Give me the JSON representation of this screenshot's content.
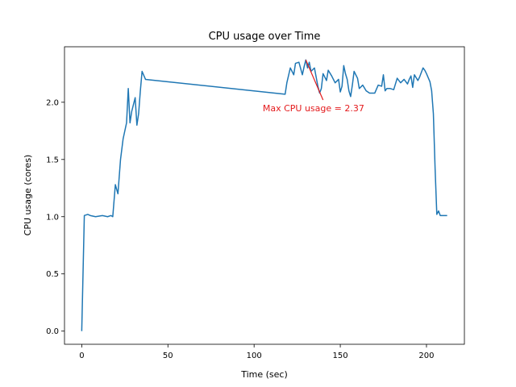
{
  "chart_data": {
    "type": "line",
    "title": "CPU usage over Time",
    "xlabel": "Time (sec)",
    "ylabel": "CPU usage (cores)",
    "xlim": [
      -10,
      222
    ],
    "ylim": [
      -0.115,
      2.485
    ],
    "xticks": [
      0,
      50,
      100,
      150,
      200
    ],
    "xtick_labels": [
      "0",
      "50",
      "100",
      "150",
      "200"
    ],
    "yticks": [
      0.0,
      0.5,
      1.0,
      1.5,
      2.0
    ],
    "ytick_labels": [
      "0.0",
      "0.5",
      "1.0",
      "1.5",
      "2.0"
    ],
    "grid": false,
    "line_color": "#1f77b4",
    "annotation": {
      "text": "Max CPU usage = 2.37",
      "x": 130,
      "y": 2.37,
      "text_x": 105,
      "text_y": 1.92,
      "color": "#e41a1c"
    },
    "series": [
      {
        "x": [
          0,
          1.5,
          3.5,
          5,
          8,
          12,
          15,
          17,
          18,
          19.5,
          21,
          22.5,
          24,
          26,
          27,
          28,
          29,
          31,
          32,
          33,
          34,
          35,
          37,
          118,
          119,
          121,
          123,
          124,
          126,
          128,
          129,
          130,
          131,
          132,
          133,
          135,
          137,
          138,
          139,
          140,
          142,
          143,
          145,
          147,
          149,
          150,
          151,
          152,
          153,
          154,
          155,
          156,
          157,
          158,
          160,
          161,
          163,
          165,
          167,
          170,
          172,
          174,
          175,
          176,
          177,
          179,
          181,
          183,
          185,
          187,
          189,
          190,
          191,
          192,
          193,
          195,
          196,
          198,
          199,
          200,
          202,
          203,
          204,
          205,
          206,
          207,
          208,
          209,
          210,
          212
        ],
        "y": [
          0.0,
          1.01,
          1.02,
          1.01,
          1.0,
          1.01,
          1.0,
          1.01,
          1.0,
          1.28,
          1.2,
          1.5,
          1.68,
          1.82,
          2.12,
          1.82,
          1.92,
          2.04,
          1.8,
          1.9,
          2.1,
          2.27,
          2.2,
          2.07,
          2.17,
          2.3,
          2.24,
          2.34,
          2.35,
          2.24,
          2.31,
          2.37,
          2.3,
          2.35,
          2.27,
          2.3,
          2.14,
          2.08,
          2.12,
          2.25,
          2.19,
          2.28,
          2.23,
          2.17,
          2.2,
          2.09,
          2.14,
          2.32,
          2.25,
          2.2,
          2.1,
          2.05,
          2.15,
          2.27,
          2.21,
          2.12,
          2.15,
          2.1,
          2.08,
          2.08,
          2.15,
          2.14,
          2.24,
          2.1,
          2.12,
          2.12,
          2.11,
          2.21,
          2.17,
          2.2,
          2.16,
          2.2,
          2.23,
          2.13,
          2.24,
          2.19,
          2.22,
          2.3,
          2.28,
          2.25,
          2.18,
          2.1,
          1.9,
          1.42,
          1.02,
          1.05,
          1.01,
          1.01,
          1.01,
          1.01
        ]
      }
    ]
  }
}
